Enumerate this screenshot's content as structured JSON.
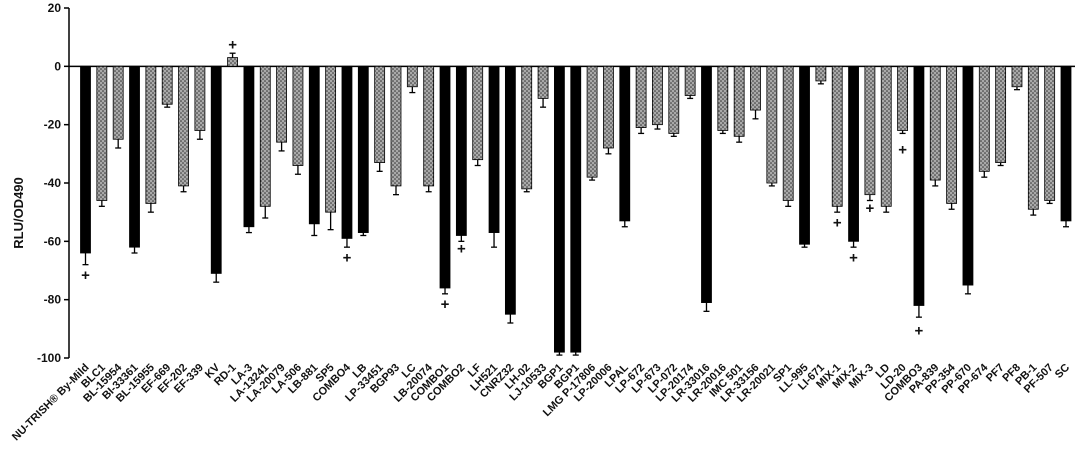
{
  "chart_data": {
    "type": "bar",
    "title": "",
    "xlabel": "",
    "ylabel": "RLU/OD490",
    "ylim": [
      -100,
      20
    ],
    "yticks": [
      20,
      0,
      -20,
      -40,
      -60,
      -80,
      -100
    ],
    "grid": false,
    "legend": "none",
    "categories": [
      "NU-TRISH® By-Mild",
      "BLC1",
      "BL-15954",
      "BI-33361",
      "BL-15955",
      "EF-669",
      "EF-202",
      "EF-339",
      "KV",
      "RD-1",
      "LA-3",
      "LA-13241",
      "LA-20079",
      "LA-506",
      "LB-881",
      "SP5",
      "COMBO4",
      "LB",
      "LP-33451",
      "BGP93",
      "LC",
      "LB-20074",
      "COMBO1",
      "COMBO2",
      "LF",
      "LH521",
      "CNRZ32",
      "LH-02",
      "LJ-10533",
      "BGP1",
      "BGP1",
      "LMG P-17806",
      "LP-20006",
      "LPAL",
      "LP-672",
      "LP-673",
      "LP-072",
      "LP-20174",
      "LR-33016",
      "LR-20016",
      "IMC 501",
      "LR-33156",
      "LR-20021",
      "SP1",
      "LL-995",
      "LI-671",
      "MIX-1",
      "MIX-2",
      "MIX-3",
      "LD",
      "LD-20",
      "COMBO3",
      "PA-839",
      "PP-354",
      "PP-670",
      "PP-674",
      "PF7",
      "PF8",
      "PB-1",
      "PF-507",
      "SC"
    ],
    "values": [
      -64,
      -46,
      -25,
      -62,
      -47,
      -13,
      -41,
      -22,
      -71,
      3,
      -55,
      -48,
      -26,
      -34,
      -54,
      -50,
      -59,
      -57,
      -33,
      -41,
      -7,
      -41,
      -76,
      -58,
      -32,
      -57,
      -85,
      -42,
      -11,
      -98,
      -98,
      -38,
      -28,
      -53,
      -21,
      -20,
      -23,
      -10,
      -81,
      -22,
      -24,
      -15,
      -40,
      -46,
      -61,
      -5,
      -48,
      -60,
      -44,
      -48,
      -22,
      -82,
      -39,
      -47,
      -75,
      -36,
      -33,
      -7,
      -49,
      -46,
      -53
    ],
    "errors": [
      4,
      2,
      3,
      2,
      3,
      1,
      2,
      3,
      3,
      1.5,
      2,
      4,
      3,
      3,
      4,
      6,
      3,
      1,
      3,
      3,
      2,
      2,
      2,
      2,
      2,
      5,
      3,
      1,
      3,
      1,
      1,
      1,
      2,
      2,
      2,
      1.5,
      1,
      1,
      3,
      1,
      2,
      3,
      1,
      2,
      1,
      1,
      2,
      2,
      2,
      2,
      1,
      4,
      2,
      2,
      3,
      2,
      1,
      1,
      2,
      1,
      2
    ],
    "bar_style": [
      "solid",
      "dotted",
      "dotted",
      "solid",
      "dotted",
      "dotted",
      "dotted",
      "dotted",
      "solid",
      "dotted",
      "solid",
      "dotted",
      "dotted",
      "dotted",
      "solid",
      "dotted",
      "solid",
      "solid",
      "dotted",
      "dotted",
      "dotted",
      "dotted",
      "solid",
      "solid",
      "dotted",
      "solid",
      "solid",
      "dotted",
      "dotted",
      "solid",
      "solid",
      "dotted",
      "dotted",
      "solid",
      "dotted",
      "dotted",
      "dotted",
      "dotted",
      "solid",
      "dotted",
      "dotted",
      "dotted",
      "dotted",
      "dotted",
      "solid",
      "dotted",
      "dotted",
      "solid",
      "dotted",
      "dotted",
      "dotted",
      "solid",
      "dotted",
      "dotted",
      "solid",
      "dotted",
      "dotted",
      "dotted",
      "dotted",
      "dotted",
      "solid"
    ],
    "markers": [
      {
        "index": 0,
        "value": -71.5,
        "text": "+"
      },
      {
        "index": 9,
        "value": 7.5,
        "text": "+"
      },
      {
        "index": 16,
        "value": -65.5,
        "text": "+"
      },
      {
        "index": 22,
        "value": -81.5,
        "text": "+"
      },
      {
        "index": 23,
        "value": -62.5,
        "text": "+"
      },
      {
        "index": 46,
        "value": -53.5,
        "text": "+"
      },
      {
        "index": 47,
        "value": -65.5,
        "text": "+"
      },
      {
        "index": 48,
        "value": -48.5,
        "text": "+"
      },
      {
        "index": 50,
        "value": -28.5,
        "text": "+"
      },
      {
        "index": 51,
        "value": -90.5,
        "text": "+"
      }
    ],
    "colors": {
      "solid": "#000000",
      "dotted": "#a9a9a9",
      "dot": "#2f2f2f",
      "axis": "#000000"
    }
  }
}
